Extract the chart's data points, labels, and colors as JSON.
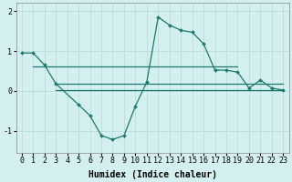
{
  "x": [
    0,
    1,
    2,
    3,
    4,
    5,
    6,
    7,
    8,
    9,
    10,
    11,
    12,
    13,
    14,
    15,
    16,
    17,
    18,
    19,
    20,
    21,
    22,
    23
  ],
  "line1": [
    0.95,
    0.95,
    0.65,
    0.18,
    null,
    -0.35,
    -0.62,
    -1.12,
    -1.22,
    -1.12,
    -0.38,
    0.22,
    1.85,
    1.65,
    1.52,
    1.47,
    1.18,
    0.52,
    0.52,
    0.47,
    0.07,
    0.27,
    0.07,
    0.02
  ],
  "hline1_x": [
    1,
    19
  ],
  "hline1_y": [
    0.62,
    0.62
  ],
  "hline2_x": [
    3,
    23
  ],
  "hline2_y": [
    0.18,
    0.18
  ],
  "hline3_x": [
    3,
    23
  ],
  "hline3_y": [
    0.02,
    0.02
  ],
  "line_color": "#1a7a6e",
  "bg_color": "#d4efef",
  "grid_color": "#b8d8d8",
  "xlabel": "Humidex (Indice chaleur)",
  "ylim": [
    -1.55,
    2.2
  ],
  "xlim": [
    -0.5,
    23.5
  ],
  "yticks": [
    -1,
    0,
    1,
    2
  ],
  "xticks": [
    0,
    1,
    2,
    3,
    4,
    5,
    6,
    7,
    8,
    9,
    10,
    11,
    12,
    13,
    14,
    15,
    16,
    17,
    18,
    19,
    20,
    21,
    22,
    23
  ],
  "xlabel_fontsize": 7,
  "tick_fontsize": 6,
  "linewidth": 0.9,
  "markersize": 2.0
}
